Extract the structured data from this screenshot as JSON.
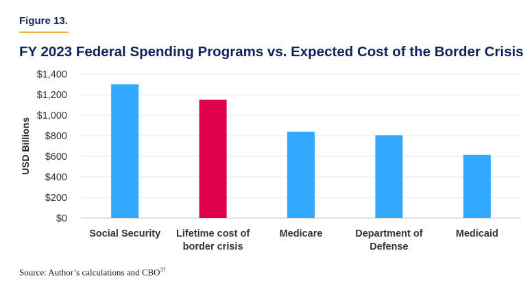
{
  "figure": {
    "label": "Figure 13."
  },
  "source": {
    "text": "Source: Author’s calculations and CBO",
    "note": "37"
  },
  "colors": {
    "highlight": "#e0004d",
    "default_bar": "#33a8ff",
    "title": "#12235a",
    "accent_rule": "#f0b43c"
  },
  "chart_data": {
    "type": "bar",
    "title": "FY 2023 Federal Spending Programs vs. Expected Cost of the Border Crisis",
    "xlabel": "",
    "ylabel": "USD Billions",
    "ylim": [
      0,
      1400
    ],
    "yticks": [
      0,
      200,
      400,
      600,
      800,
      1000,
      1200,
      1400
    ],
    "ytick_labels": [
      "$0",
      "$200",
      "$400",
      "$600",
      "$800",
      "$1,000",
      "$1,200",
      "$1,400"
    ],
    "grid": true,
    "categories": [
      [
        "Social Security"
      ],
      [
        "Lifetime cost of",
        "border crisis"
      ],
      [
        "Medicare"
      ],
      [
        "Department of",
        "Defense"
      ],
      [
        "Medicaid"
      ]
    ],
    "values": [
      1300,
      1150,
      840,
      805,
      615
    ],
    "bar_colors": [
      "#33a8ff",
      "#e0004d",
      "#33a8ff",
      "#33a8ff",
      "#33a8ff"
    ]
  }
}
